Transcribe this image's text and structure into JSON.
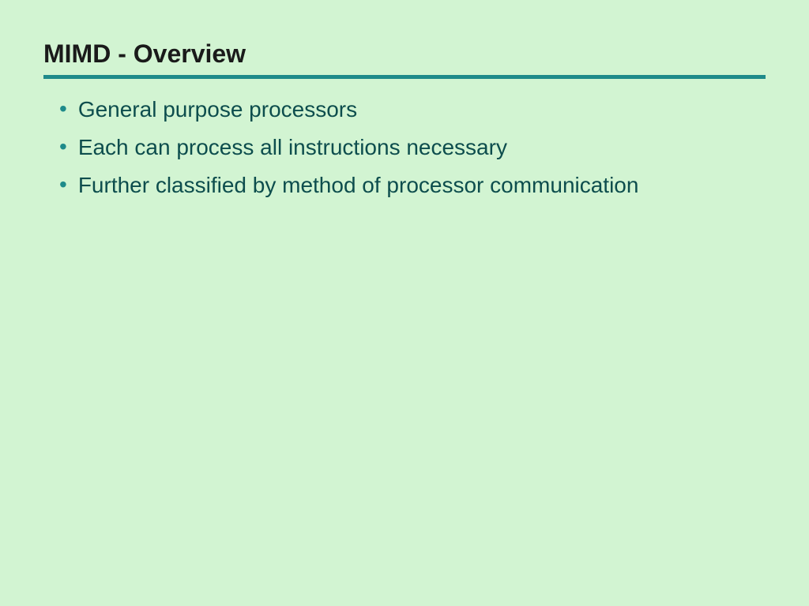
{
  "slide": {
    "title": "MIMD - Overview",
    "bullets": [
      "General purpose processors",
      "Each can process all instructions necessary",
      "Further classified by method of processor communication"
    ]
  },
  "styling": {
    "background_color": "#d2f4d2",
    "title_color": "#1a1a1a",
    "title_fontsize": 32,
    "title_fontweight": "bold",
    "underline_color": "#1e8a8a",
    "underline_height": 5,
    "bullet_marker_color": "#1e8a8a",
    "bullet_text_color": "#0d4d4d",
    "bullet_fontsize": 28,
    "font_family": "Verdana, Geneva, sans-serif"
  }
}
